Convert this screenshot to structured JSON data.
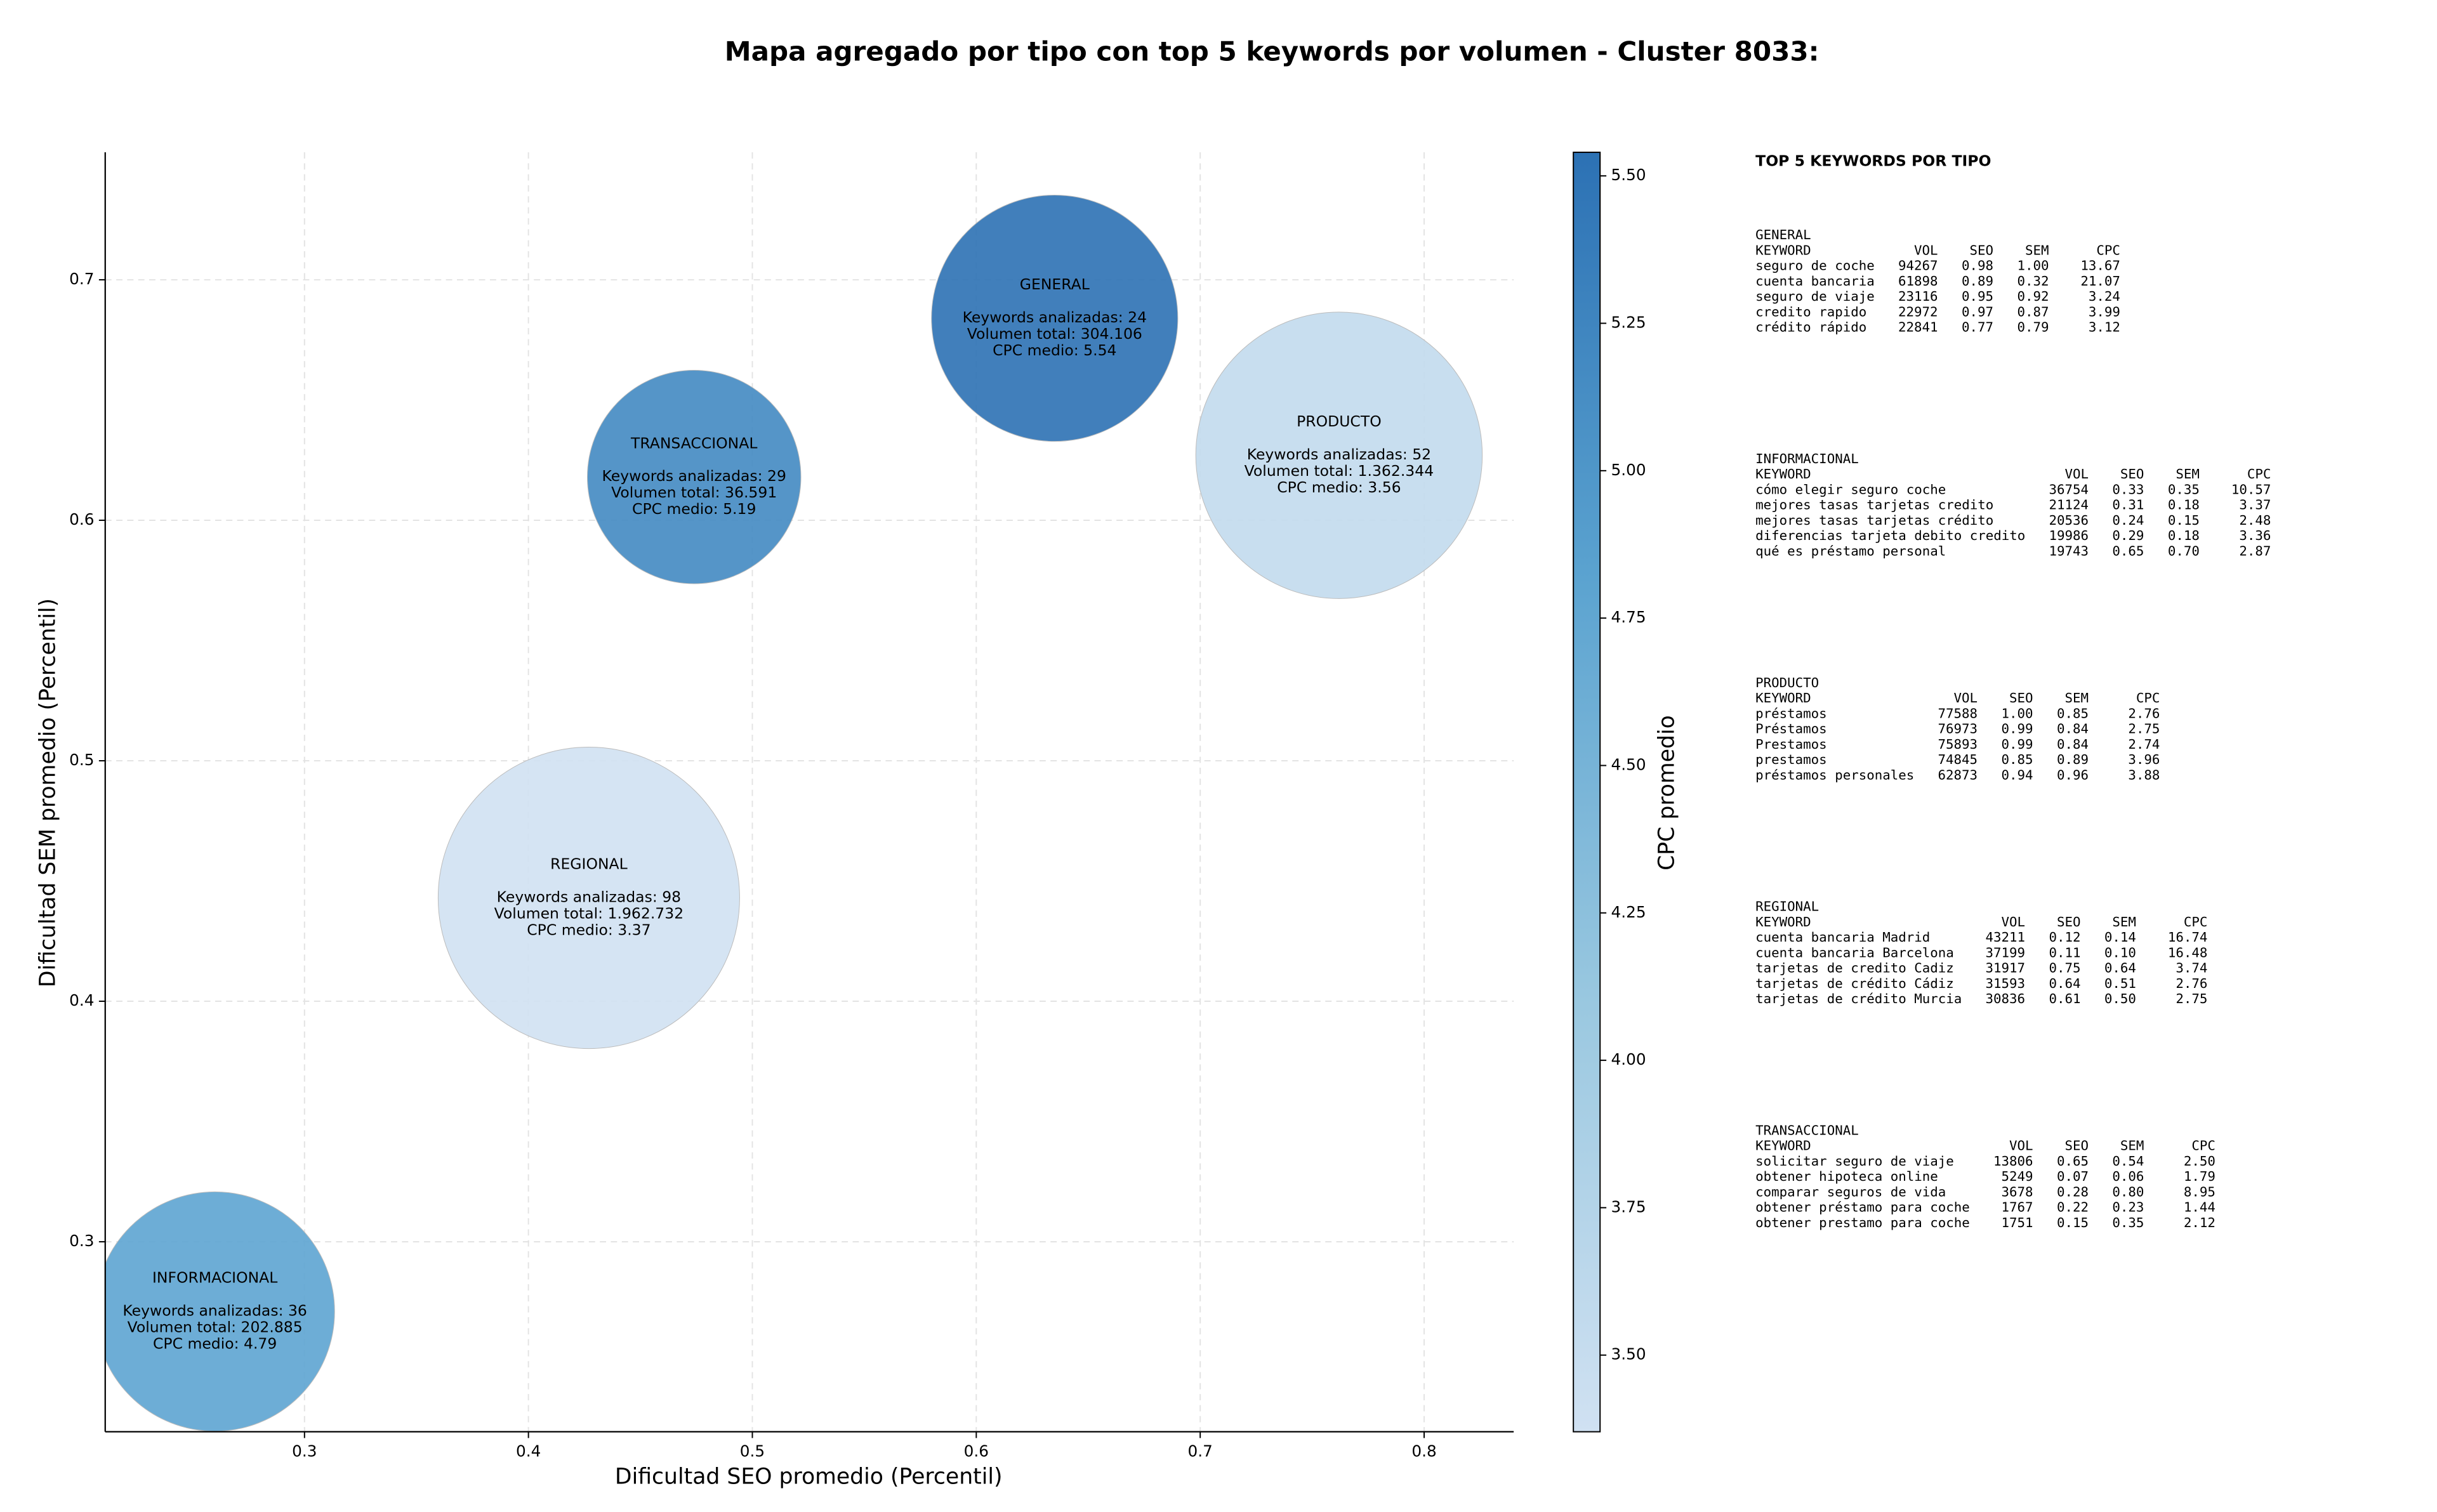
{
  "chart_data": {
    "type": "bubble",
    "title": "Mapa agregado por tipo con top 5 keywords por volumen - Cluster 8033:",
    "xlabel": "Dificultad SEO promedio (Percentil)",
    "ylabel": "Dificultad SEM promedio (Percentil)",
    "xlim": [
      0.211,
      0.84
    ],
    "ylim": [
      0.221,
      0.753
    ],
    "xticks": [
      0.3,
      0.4,
      0.5,
      0.6,
      0.7,
      0.8
    ],
    "yticks": [
      0.3,
      0.4,
      0.5,
      0.6,
      0.7
    ],
    "grid": true,
    "points": [
      {
        "name": "GENERAL",
        "x": 0.635,
        "y": 0.684,
        "size": 304106,
        "color_value": 5.54,
        "labels": [
          "Keywords analizadas: 24",
          "Volumen total: 304.106",
          "CPC medio: 5.54"
        ]
      },
      {
        "name": "INFORMACIONAL",
        "x": 0.26,
        "y": 0.271,
        "size": 202885,
        "color_value": 4.79,
        "labels": [
          "Keywords analizadas: 36",
          "Volumen total: 202.885",
          "CPC medio: 4.79"
        ]
      },
      {
        "name": "PRODUCTO",
        "x": 0.762,
        "y": 0.627,
        "size": 1362344,
        "color_value": 3.56,
        "labels": [
          "Keywords analizadas: 52",
          "Volumen total: 1.362.344",
          "CPC medio: 3.56"
        ]
      },
      {
        "name": "REGIONAL",
        "x": 0.427,
        "y": 0.443,
        "size": 1962732,
        "color_value": 3.37,
        "labels": [
          "Keywords analizadas: 98",
          "Volumen total: 1.962.732",
          "CPC medio: 3.37"
        ]
      },
      {
        "name": "TRANSACCIONAL",
        "x": 0.474,
        "y": 0.618,
        "size": 36591,
        "color_value": 5.19,
        "labels": [
          "Keywords analizadas: 29",
          "Volumen total: 36.591",
          "CPC medio: 5.19"
        ]
      }
    ],
    "colormap": [
      "#d0e1f2",
      "#9ac8e0",
      "#5ba3d0",
      "#2c71b4"
    ],
    "colorbar": {
      "label": "CPC promedio",
      "lim": [
        3.37,
        5.54
      ],
      "ticks": [
        {
          "value": 3.5,
          "label": "3.50"
        },
        {
          "value": 3.75,
          "label": "3.75"
        },
        {
          "value": 4.0,
          "label": "4.00"
        },
        {
          "value": 4.25,
          "label": "4.25"
        },
        {
          "value": 4.5,
          "label": "4.50"
        },
        {
          "value": 4.75,
          "label": "4.75"
        },
        {
          "value": 5.0,
          "label": "5.00"
        },
        {
          "value": 5.25,
          "label": "5.25"
        },
        {
          "value": 5.5,
          "label": "5.50"
        }
      ]
    }
  },
  "keyword_tables": {
    "title": "TOP 5 KEYWORDS POR TIPO",
    "header": [
      "KEYWORD",
      "VOL",
      "SEO",
      "SEM",
      "CPC"
    ],
    "tables": [
      {
        "name": "GENERAL",
        "rows": [
          [
            "seguro de coche",
            94267,
            "0.98",
            "1.00",
            "13.67"
          ],
          [
            "cuenta bancaria",
            61898,
            "0.89",
            "0.32",
            "21.07"
          ],
          [
            "seguro de viaje",
            23116,
            "0.95",
            "0.92",
            "3.24"
          ],
          [
            "credito rapido",
            22972,
            "0.97",
            "0.87",
            "3.99"
          ],
          [
            "crédito rápido",
            22841,
            "0.77",
            "0.79",
            "3.12"
          ]
        ]
      },
      {
        "name": "INFORMACIONAL",
        "rows": [
          [
            "cómo elegir seguro coche",
            36754,
            "0.33",
            "0.35",
            "10.57"
          ],
          [
            "mejores tasas tarjetas credito",
            21124,
            "0.31",
            "0.18",
            "3.37"
          ],
          [
            "mejores tasas tarjetas crédito",
            20536,
            "0.24",
            "0.15",
            "2.48"
          ],
          [
            "diferencias tarjeta debito credito",
            19986,
            "0.29",
            "0.18",
            "3.36"
          ],
          [
            "qué es préstamo personal",
            19743,
            "0.65",
            "0.70",
            "2.87"
          ]
        ]
      },
      {
        "name": "PRODUCTO",
        "rows": [
          [
            "préstamos",
            77588,
            "1.00",
            "0.85",
            "2.76"
          ],
          [
            "Préstamos",
            76973,
            "0.99",
            "0.84",
            "2.75"
          ],
          [
            "Prestamos",
            75893,
            "0.99",
            "0.84",
            "2.74"
          ],
          [
            "prestamos",
            74845,
            "0.85",
            "0.89",
            "3.96"
          ],
          [
            "préstamos personales",
            62873,
            "0.94",
            "0.96",
            "3.88"
          ]
        ]
      },
      {
        "name": "REGIONAL",
        "rows": [
          [
            "cuenta bancaria Madrid",
            43211,
            "0.12",
            "0.14",
            "16.74"
          ],
          [
            "cuenta bancaria Barcelona",
            37199,
            "0.11",
            "0.10",
            "16.48"
          ],
          [
            "tarjetas de credito Cadiz",
            31917,
            "0.75",
            "0.64",
            "3.74"
          ],
          [
            "tarjetas de crédito Cádiz",
            31593,
            "0.64",
            "0.51",
            "2.76"
          ],
          [
            "tarjetas de crédito Murcia",
            30836,
            "0.61",
            "0.50",
            "2.75"
          ]
        ]
      },
      {
        "name": "TRANSACCIONAL",
        "rows": [
          [
            "solicitar seguro de viaje",
            13806,
            "0.65",
            "0.54",
            "2.50"
          ],
          [
            "obtener hipoteca online",
            5249,
            "0.07",
            "0.06",
            "1.79"
          ],
          [
            "comparar seguros de vida",
            3678,
            "0.28",
            "0.80",
            "8.95"
          ],
          [
            "obtener préstamo para coche",
            1767,
            "0.22",
            "0.23",
            "1.44"
          ],
          [
            "obtener prestamo para coche",
            1751,
            "0.15",
            "0.35",
            "2.12"
          ]
        ]
      }
    ]
  }
}
